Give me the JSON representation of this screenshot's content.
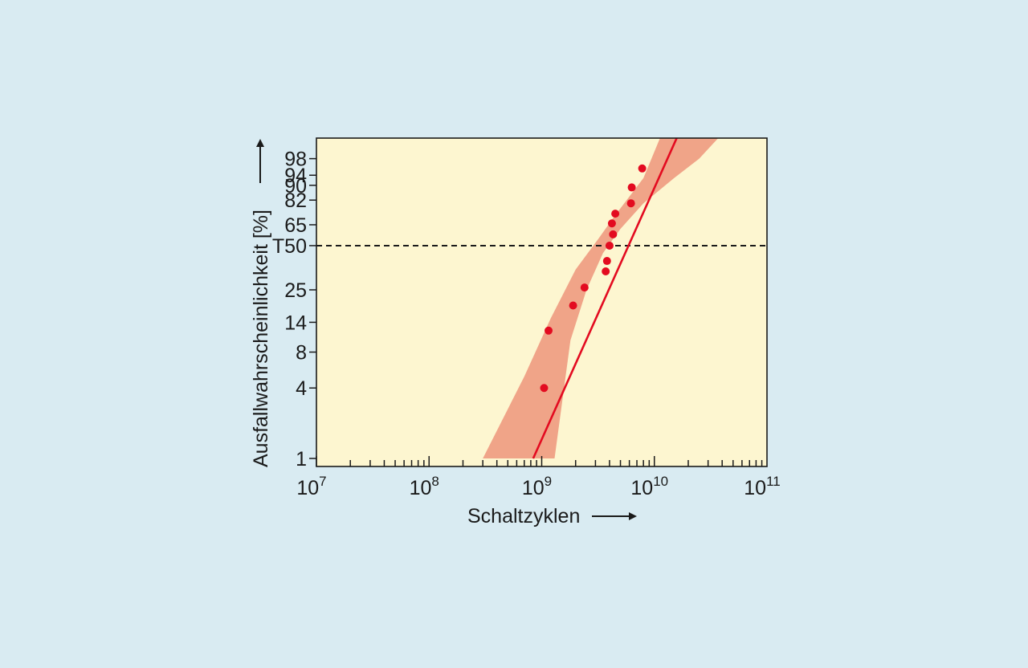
{
  "chart_data": {
    "type": "scatter",
    "title": "",
    "xlabel": "Schaltzyklen",
    "ylabel": "Ausfallwahrscheinlichkeit [%]",
    "x_scale": "log",
    "y_scale": "weibull-probability",
    "xlim": [
      10000000,
      100000000000
    ],
    "ylim": [
      1,
      99.9
    ],
    "x_ticks": [
      {
        "value": 10000000,
        "base": "10",
        "exp": "7"
      },
      {
        "value": 100000000,
        "base": "10",
        "exp": "8"
      },
      {
        "value": 1000000000,
        "base": "10",
        "exp": "9"
      },
      {
        "value": 10000000000,
        "base": "10",
        "exp": "10"
      },
      {
        "value": 100000000000,
        "base": "10",
        "exp": "11"
      }
    ],
    "y_ticks": [
      {
        "value": 1,
        "label": "1"
      },
      {
        "value": 4,
        "label": "4"
      },
      {
        "value": 8,
        "label": "8"
      },
      {
        "value": 14,
        "label": "14"
      },
      {
        "value": 25,
        "label": "25"
      },
      {
        "value": 50,
        "label": "T50"
      },
      {
        "value": 65,
        "label": "65"
      },
      {
        "value": 82,
        "label": "82"
      },
      {
        "value": 90,
        "label": "90"
      },
      {
        "value": 94,
        "label": "94"
      },
      {
        "value": 98,
        "label": "98"
      }
    ],
    "reference_line": {
      "y": 50,
      "label": "T50",
      "style": "dashed",
      "color": "#1a1a1a"
    },
    "fit_line": {
      "x": [
        840000000,
        17000000000
      ],
      "y": [
        1,
        99.9
      ],
      "color": "#e30b20"
    },
    "confidence_band": {
      "color": "#f0a488",
      "upper": {
        "x": [
          300000000,
          700000000,
          1200000000,
          2000000000,
          3200000000,
          4500000000,
          8000000000,
          12000000000
        ],
        "y": [
          1,
          5,
          15,
          35,
          55,
          72,
          93,
          99.9
        ]
      },
      "lower": {
        "x": [
          1300000000,
          1800000000,
          2500000000,
          3500000000,
          5000000000,
          8000000000,
          15000000000,
          25000000000,
          43000000000
        ],
        "y": [
          1,
          10,
          25,
          45,
          62,
          80,
          93,
          98,
          99.9
        ]
      }
    },
    "points": {
      "color": "#e30b20",
      "x": [
        1050000000,
        1150000000,
        1900000000,
        2400000000,
        3700000000,
        3800000000,
        4000000000,
        4300000000,
        4200000000,
        4500000000,
        6200000000,
        6300000000,
        7800000000
      ],
      "y": [
        4,
        12,
        19,
        26,
        34,
        40,
        50,
        58,
        66,
        73,
        80,
        89,
        96
      ]
    },
    "plot_background": "#fdf6d0",
    "grid": false,
    "legend": "none"
  }
}
